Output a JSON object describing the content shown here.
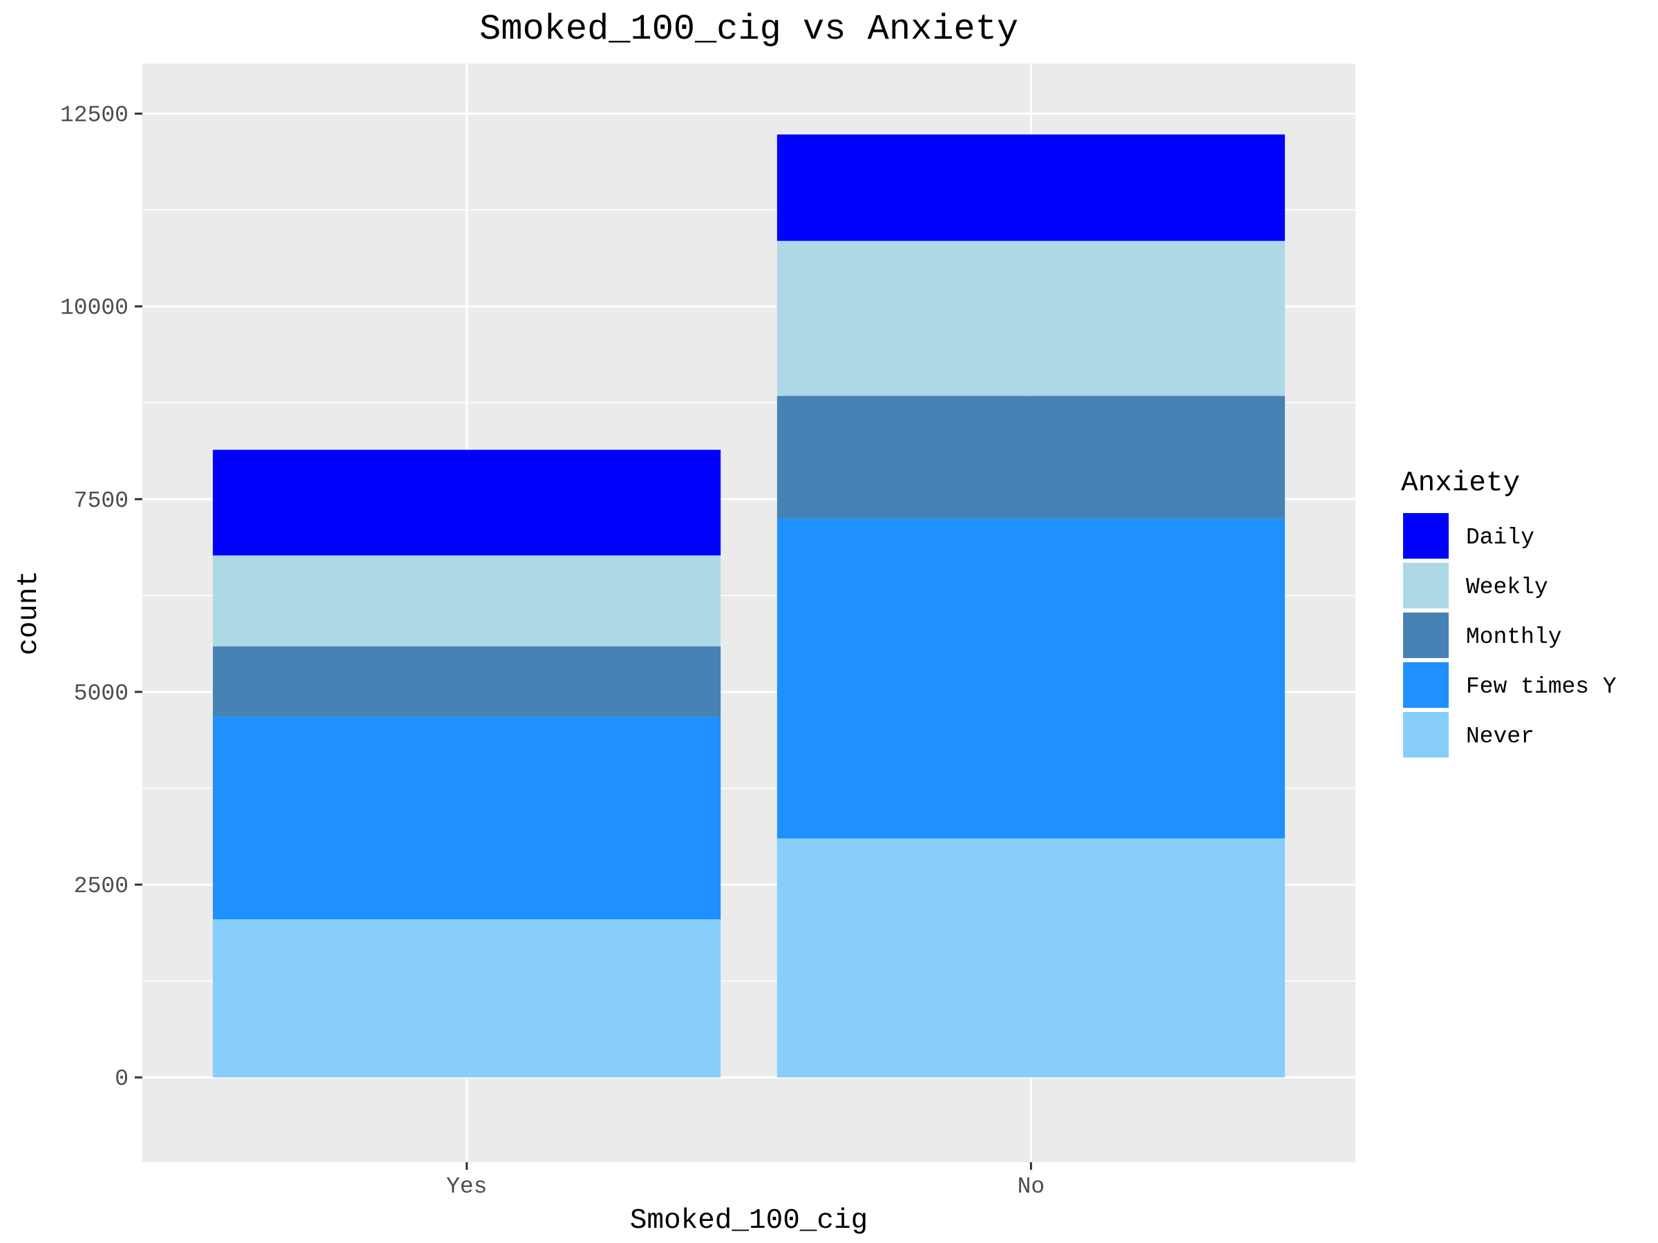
{
  "chart_data": {
    "type": "bar",
    "stacked": true,
    "title": "Smoked_100_cig vs Anxiety",
    "xlabel": "Smoked_100_cig",
    "ylabel": "count",
    "categories": [
      "Yes",
      "No"
    ],
    "ylim": [
      -1100,
      13150
    ],
    "yticks": [
      0,
      2500,
      5000,
      7500,
      10000,
      12500
    ],
    "ytick_labels": [
      "0",
      "2500",
      "5000",
      "7500",
      "10000",
      "12500"
    ],
    "grid": true,
    "legend": {
      "title": "Anxiety",
      "position": "right"
    },
    "series": [
      {
        "name": "Daily",
        "color": "#0000FF",
        "values": [
          1370,
          1380
        ]
      },
      {
        "name": "Weekly",
        "color": "#ADD8E6",
        "values": [
          1180,
          2010
        ]
      },
      {
        "name": "Monthly",
        "color": "#4682B4",
        "values": [
          910,
          1590
        ]
      },
      {
        "name": "Few times Y",
        "color": "#1E90FF",
        "values": [
          2630,
          4150
        ]
      },
      {
        "name": "Never",
        "color": "#87CEFA",
        "values": [
          2050,
          3100
        ]
      }
    ],
    "panel_background": "#EBEBEB",
    "grid_color": "#FFFFFF"
  }
}
